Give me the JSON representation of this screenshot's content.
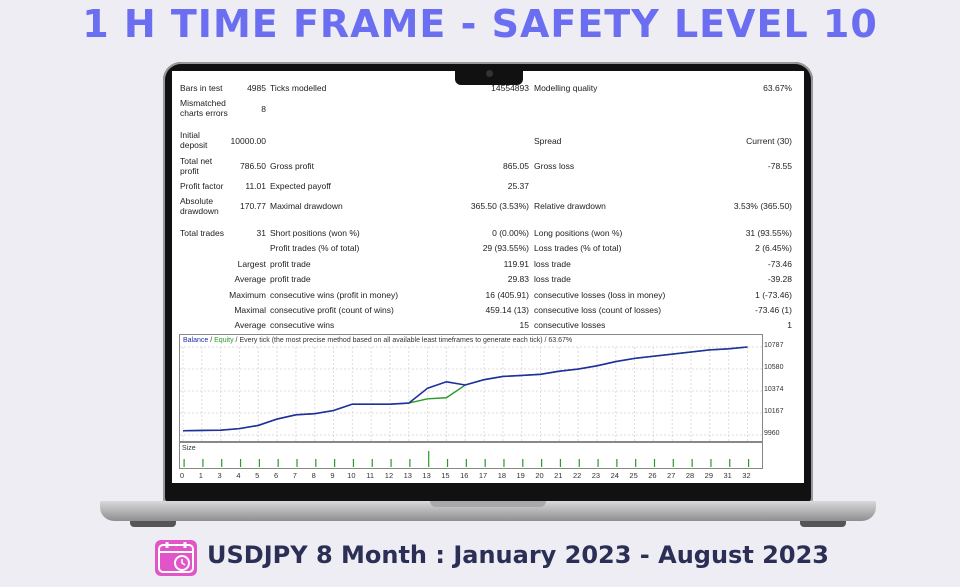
{
  "headline": "1 H TIME FRAME  - SAFETY LEVEL  10",
  "footer": "USDJPY 8 Month : January 2023 - August 2023",
  "colors": {
    "accent": "#6b6ef0",
    "balance": "#1f2fa0",
    "equity": "#2a9a2a",
    "calendar": "#e255c8"
  },
  "icons": {
    "calendar": "calendar-clock-icon"
  },
  "report": {
    "bars_label": "Bars in test",
    "bars_value": "4985",
    "ticks_label": "Ticks modelled",
    "ticks_value": "14554893",
    "quality_label": "Modelling quality",
    "quality_value": "63.67%",
    "mismatch_label": "Mismatched charts errors",
    "mismatch_value": "8",
    "deposit_label": "Initial deposit",
    "deposit_value": "10000.00",
    "spread_label": "Spread",
    "spread_value": "Current (30)",
    "netprofit_label": "Total net profit",
    "netprofit_value": "786.50",
    "grossprofit_label": "Gross profit",
    "grossprofit_value": "865.05",
    "grossloss_label": "Gross loss",
    "grossloss_value": "-78.55",
    "pf_label": "Profit factor",
    "pf_value": "11.01",
    "payoff_label": "Expected payoff",
    "payoff_value": "25.37",
    "absdd_label": "Absolute drawdown",
    "absdd_value": "170.77",
    "maxdd_label": "Maximal drawdown",
    "maxdd_value": "365.50 (3.53%)",
    "reldd_label": "Relative drawdown",
    "reldd_value": "3.53% (365.50)",
    "trades_label": "Total trades",
    "trades_value": "31",
    "short_label": "Short positions (won %)",
    "short_value": "0 (0.00%)",
    "long_label": "Long positions (won %)",
    "long_value": "31 (93.55%)",
    "pt_label": "Profit trades (% of total)",
    "pt_value": "29 (93.55%)",
    "lt_label": "Loss trades (% of total)",
    "lt_value": "2 (6.45%)",
    "largest": "Largest",
    "profit_trade": "profit trade",
    "largest_profit": "119.91",
    "loss_trade": "loss trade",
    "largest_loss": "-73.46",
    "average": "Average",
    "average_profit": "29.83",
    "average_loss": "-39.28",
    "maximum": "Maximum",
    "cwins_label": "consecutive wins (profit in money)",
    "cwins_value": "16 (405.91)",
    "closses_label": "consecutive losses (loss in money)",
    "closses_value": "1 (-73.46)",
    "maximal": "Maximal",
    "cprofit_label": "consecutive profit (count of wins)",
    "cprofit_value": "459.14 (13)",
    "closs_label": "consecutive loss (count of losses)",
    "closs_value": "-73.46 (1)",
    "average2": "Average",
    "awins_label": "consecutive wins",
    "awins_value": "15",
    "alosses_label": "consecutive losses",
    "alosses_value": "1"
  },
  "chart_data": {
    "type": "line",
    "legend_balance": "Balance",
    "legend_sep": " / ",
    "legend_equity": "Equity",
    "legend_rest": " / Every tick (the most precise method based on all available least timeframes to generate each tick) / 63.67%",
    "size_label": "Size",
    "yticks": [
      "10787",
      "10580",
      "10374",
      "10167",
      "9960"
    ],
    "ylim": [
      9960,
      10787
    ],
    "xticks": [
      "0",
      "1",
      "3",
      "4",
      "5",
      "6",
      "7",
      "8",
      "9",
      "10",
      "11",
      "12",
      "13",
      "13",
      "15",
      "16",
      "17",
      "18",
      "19",
      "20",
      "21",
      "22",
      "23",
      "24",
      "25",
      "26",
      "27",
      "28",
      "29",
      "31",
      "32"
    ],
    "balance": [
      10000,
      10003,
      10005,
      10020,
      10050,
      10110,
      10150,
      10160,
      10190,
      10250,
      10250,
      10250,
      10260,
      10400,
      10460,
      10430,
      10480,
      10510,
      10520,
      10530,
      10560,
      10580,
      10610,
      10650,
      10680,
      10700,
      10720,
      10740,
      10760,
      10770,
      10787
    ],
    "equity": [
      10000,
      10003,
      10005,
      10020,
      10050,
      10110,
      10150,
      10160,
      10190,
      10250,
      10250,
      10250,
      10260,
      10300,
      10310,
      10430,
      10480,
      10510,
      10520,
      10530,
      10560,
      10580,
      10610,
      10650,
      10680,
      10700,
      10720,
      10740,
      10760,
      10770,
      10787
    ],
    "sizes": [
      1,
      1,
      1,
      1,
      1,
      1,
      1,
      1,
      1,
      1,
      1,
      1,
      1,
      2,
      1,
      1,
      1,
      1,
      1,
      1,
      1,
      1,
      1,
      1,
      1,
      1,
      1,
      1,
      1,
      1,
      1
    ]
  }
}
